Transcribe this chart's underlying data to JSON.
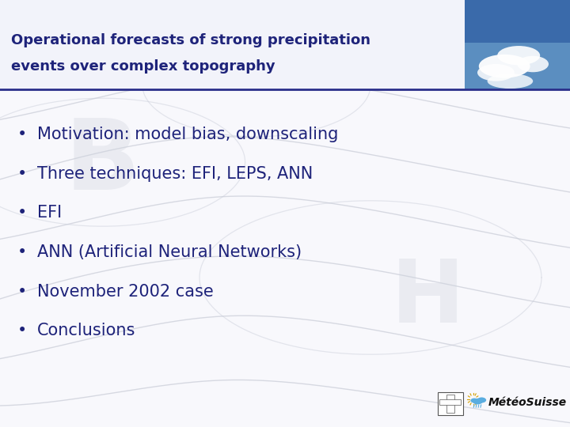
{
  "title_line1": "Operational forecasts of strong precipitation",
  "title_line2": "events over complex topography",
  "title_color": "#1e237a",
  "title_fontsize": 13,
  "bullet_items": [
    "Motivation: model bias, downscaling",
    "Three techniques: EFI, LEPS, ANN",
    "EFI",
    "ANN (Artificial Neural Networks)",
    "November 2002 case",
    "Conclusions"
  ],
  "bullet_color": "#1e237a",
  "bullet_fontsize": 15,
  "background_color": "#f8f8fc",
  "header_bg_color": "#f0f0f8",
  "divider_color": "#2a2e8a",
  "logo_text": "MétéoSuisse",
  "logo_color": "#111111",
  "logo_fontsize": 10
}
